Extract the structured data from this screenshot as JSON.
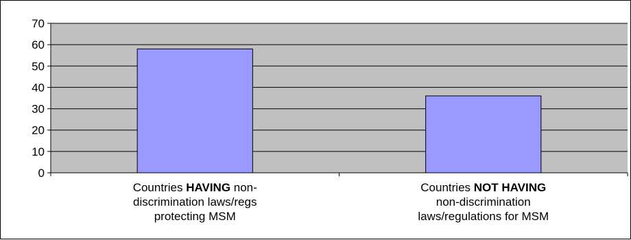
{
  "chart_data": {
    "type": "bar",
    "categories": [
      {
        "lines": [
          [
            {
              "text": "Countries "
            },
            {
              "text": "HAVING",
              "bold": true
            },
            {
              "text": " non-"
            }
          ],
          [
            {
              "text": "discrimination laws/regs"
            }
          ],
          [
            {
              "text": "protecting MSM"
            }
          ]
        ]
      },
      {
        "lines": [
          [
            {
              "text": "Countries "
            },
            {
              "text": "NOT HAVING",
              "bold": true
            }
          ],
          [
            {
              "text": "non-discrimination"
            }
          ],
          [
            {
              "text": "laws/regulations for MSM"
            }
          ]
        ]
      }
    ],
    "values": [
      58,
      36
    ],
    "ylim": [
      0,
      70
    ],
    "yticks": [
      0,
      10,
      20,
      30,
      40,
      50,
      60,
      70
    ],
    "grid": true,
    "colors": {
      "plot_background": "#c0c0c0",
      "bar_fill": "#9999ff",
      "bar_stroke": "#000000",
      "grid": "#000000"
    }
  }
}
